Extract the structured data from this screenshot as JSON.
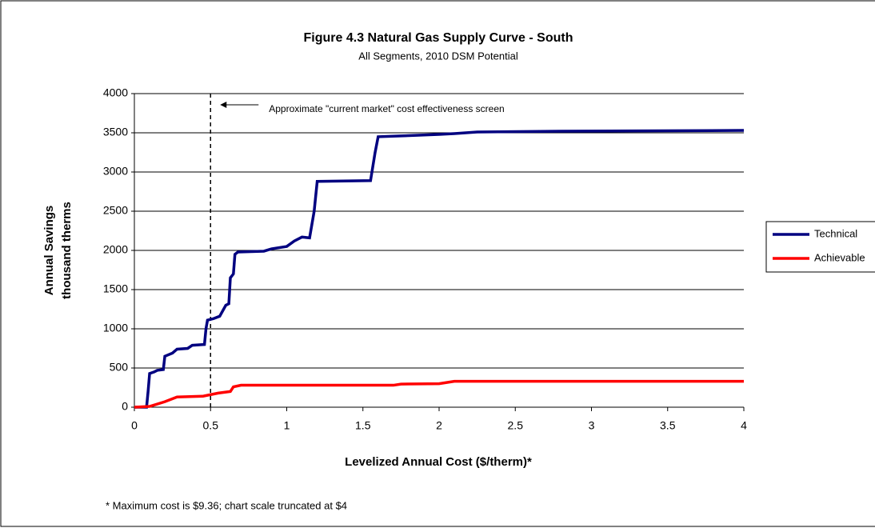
{
  "chart_data": {
    "type": "line",
    "title": "Figure 4.3  Natural Gas Supply Curve - South",
    "subtitle": "All Segments, 2010 DSM Potential",
    "x_label": "Levelized Annual Cost ($/therm)*",
    "y_label": [
      "Annual Savings",
      "thousand therms"
    ],
    "xlim": [
      0,
      4
    ],
    "xticks": [
      0,
      0.5,
      1,
      1.5,
      2,
      2.5,
      3,
      3.5,
      4
    ],
    "ylim": [
      0,
      4000
    ],
    "yticks": [
      0,
      500,
      1000,
      1500,
      2000,
      2500,
      3000,
      3500,
      4000
    ],
    "grid": true,
    "legend": "right",
    "annotation": {
      "text": "Approximate \"current market\" cost effectiveness screen",
      "x": 0.5
    },
    "footnote": "* Maximum cost is $9.36; chart scale truncated at $4",
    "series": [
      {
        "name": "Technical",
        "color": "#000080",
        "x": [
          0,
          0.08,
          0.09,
          0.1,
          0.13,
          0.15,
          0.19,
          0.2,
          0.25,
          0.28,
          0.35,
          0.38,
          0.46,
          0.47,
          0.48,
          0.52,
          0.56,
          0.6,
          0.62,
          0.63,
          0.65,
          0.66,
          0.68,
          0.85,
          0.9,
          1.0,
          1.05,
          1.1,
          1.15,
          1.18,
          1.2,
          1.55,
          1.58,
          1.6,
          1.75,
          2.0,
          2.1,
          2.25,
          2.8,
          4.0
        ],
        "values": [
          0,
          0,
          200,
          430,
          450,
          470,
          480,
          650,
          690,
          740,
          750,
          790,
          800,
          1000,
          1110,
          1130,
          1160,
          1300,
          1320,
          1650,
          1700,
          1950,
          1980,
          1990,
          2020,
          2050,
          2120,
          2170,
          2160,
          2500,
          2880,
          2890,
          3250,
          3450,
          3460,
          3480,
          3490,
          3510,
          3520,
          3530
        ]
      },
      {
        "name": "Achievable",
        "color": "#ff0000",
        "x": [
          0,
          0.1,
          0.2,
          0.28,
          0.45,
          0.55,
          0.63,
          0.65,
          0.7,
          1.0,
          1.7,
          1.75,
          2.0,
          2.1,
          4.0
        ],
        "values": [
          0,
          10,
          70,
          130,
          140,
          180,
          200,
          260,
          280,
          280,
          280,
          295,
          300,
          330,
          330
        ]
      }
    ]
  }
}
